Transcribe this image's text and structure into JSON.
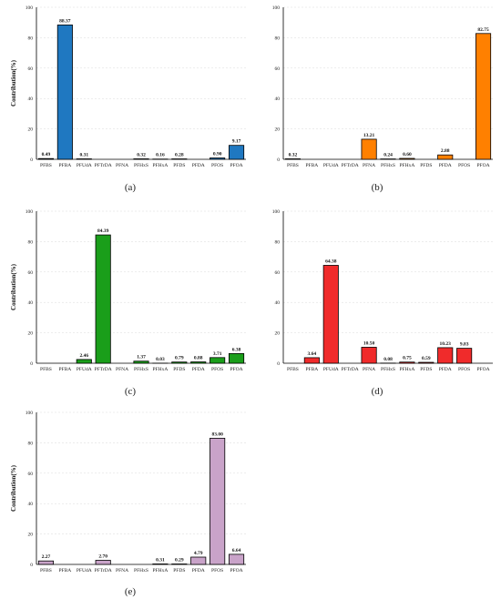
{
  "chart_data": [
    {
      "type": "bar",
      "panel": "(a)",
      "categories": [
        "PFBS",
        "PFBA",
        "PFUdA",
        "PFTrDA",
        "PFNA",
        "PFHxS",
        "PFHxA",
        "PFDS",
        "PFDA",
        "PFOS",
        "PFOA"
      ],
      "values": [
        0.49,
        88.37,
        0.31,
        0,
        0,
        0.32,
        0.16,
        0.28,
        0,
        0.9,
        9.17
      ],
      "labels": [
        "0.49",
        "88.37",
        "0.31",
        "",
        "",
        "0.32",
        "0.16",
        "0.28",
        "",
        "0.90",
        "9.17"
      ],
      "color": "#1f78c1",
      "ylabel": "Contribution(%)",
      "ylim": [
        0,
        100
      ],
      "yticks": [
        "0",
        "20",
        "40",
        "60",
        "80",
        "100"
      ]
    },
    {
      "type": "bar",
      "panel": "(b)",
      "categories": [
        "PFBS",
        "PFBA",
        "PFUdA",
        "PFTrDA",
        "PFNA",
        "PFHxS",
        "PFHxA",
        "PFDS",
        "PFDA",
        "PFOS",
        "PFOA"
      ],
      "values": [
        0.32,
        0,
        0,
        0,
        13.21,
        0.24,
        0.6,
        0,
        2.88,
        0,
        82.75
      ],
      "labels": [
        "0.32",
        "",
        "",
        "",
        "13.21",
        "0.24",
        "0.60",
        "",
        "2.88",
        "",
        "82.75"
      ],
      "color": "#ff8000",
      "ylabel": "",
      "ylim": [
        0,
        100
      ],
      "yticks": [
        "0",
        "20",
        "40",
        "60",
        "80",
        "100"
      ]
    },
    {
      "type": "bar",
      "panel": "(c)",
      "categories": [
        "PFBS",
        "PFBA",
        "PFUdA",
        "PFTrDA",
        "PFNA",
        "PFHxS",
        "PFHxA",
        "PFDS",
        "PFDA",
        "PFOS",
        "PFOA"
      ],
      "values": [
        0,
        0,
        2.46,
        84.39,
        0,
        1.37,
        0.03,
        0.79,
        0.88,
        3.71,
        6.38
      ],
      "labels": [
        "",
        "",
        "2.46",
        "84.39",
        "",
        "1.37",
        "0.03",
        "0.79",
        "0.88",
        "3.71",
        "6.38"
      ],
      "color": "#1a9e1a",
      "ylabel": "Contribution(%)",
      "ylim": [
        0,
        100
      ],
      "yticks": [
        "0",
        "20",
        "40",
        "60",
        "80",
        "100"
      ]
    },
    {
      "type": "bar",
      "panel": "(d)",
      "categories": [
        "PFBS",
        "PFBA",
        "PFUdA",
        "PFTrDA",
        "PFNA",
        "PFHxS",
        "PFHxA",
        "PFDS",
        "PFDA",
        "PFOS",
        "PFOA"
      ],
      "values": [
        0,
        3.64,
        64.38,
        0,
        10.5,
        0.08,
        0.75,
        0.59,
        10.23,
        9.83,
        0
      ],
      "labels": [
        "",
        "3.64",
        "64.38",
        "",
        "10.50",
        "0.08",
        "0.75",
        "0.59",
        "10.23",
        "9.83",
        ""
      ],
      "color": "#f02b2b",
      "ylabel": "",
      "ylim": [
        0,
        100
      ],
      "yticks": [
        "0",
        "20",
        "40",
        "60",
        "80",
        "100"
      ]
    },
    {
      "type": "bar",
      "panel": "(e)",
      "categories": [
        "PFBS",
        "PFBA",
        "PFUdA",
        "PFTrDA",
        "PFNA",
        "PFHxS",
        "PFHxA",
        "PFDS",
        "PFDA",
        "PFOS",
        "PFOA"
      ],
      "values": [
        2.27,
        0,
        0,
        2.7,
        0,
        0,
        0.31,
        0.29,
        4.79,
        83.0,
        6.64
      ],
      "labels": [
        "2.27",
        "",
        "",
        "2.70",
        "",
        "",
        "0.31",
        "0.29",
        "4.79",
        "83.00",
        "6.64"
      ],
      "color": "#c9a3c9",
      "ylabel": "Contribution(%)",
      "ylim": [
        0,
        100
      ],
      "yticks": [
        "0",
        "20",
        "40",
        "60",
        "80",
        "100"
      ]
    }
  ]
}
